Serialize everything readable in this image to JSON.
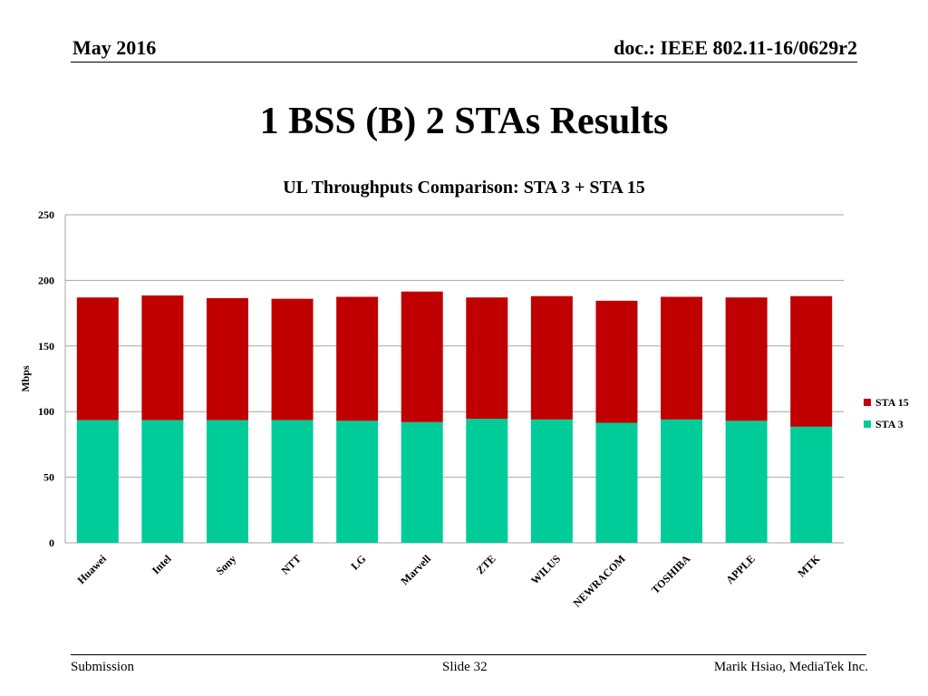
{
  "header": {
    "date": "May 2016",
    "doc_id": "doc.: IEEE 802.11-16/0629r2"
  },
  "slide": {
    "title": "1 BSS (B) 2 STAs Results"
  },
  "footer": {
    "left": "Submission",
    "center": "Slide 32",
    "right": "Marik Hsiao, MediaTek Inc."
  },
  "chart_data": {
    "type": "bar",
    "stacked": true,
    "title": "UL Throughputs Comparison:  STA 3 + STA 15",
    "xlabel": "",
    "ylabel": "Mbps",
    "ylim": [
      0,
      250
    ],
    "yticks": [
      0,
      50,
      100,
      150,
      200,
      250
    ],
    "grid": true,
    "legend_position": "right",
    "categories": [
      "Huawei",
      "Intel",
      "Sony",
      "NTT",
      "LG",
      "Marvell",
      "ZTE",
      "WILUS",
      "NEWRACOM",
      "TOSHIBA",
      "APPLE",
      "MTK"
    ],
    "series": [
      {
        "name": "STA 3",
        "color": "#00cc99",
        "values": [
          93.5,
          93.5,
          93.5,
          93.5,
          93,
          92,
          94.5,
          94,
          91.5,
          94,
          93,
          88.5
        ]
      },
      {
        "name": "STA 15",
        "color": "#c00000",
        "values": [
          93.5,
          95,
          93,
          92.5,
          94.5,
          99.5,
          92.5,
          94,
          93,
          93.5,
          94,
          99.5
        ]
      }
    ]
  }
}
